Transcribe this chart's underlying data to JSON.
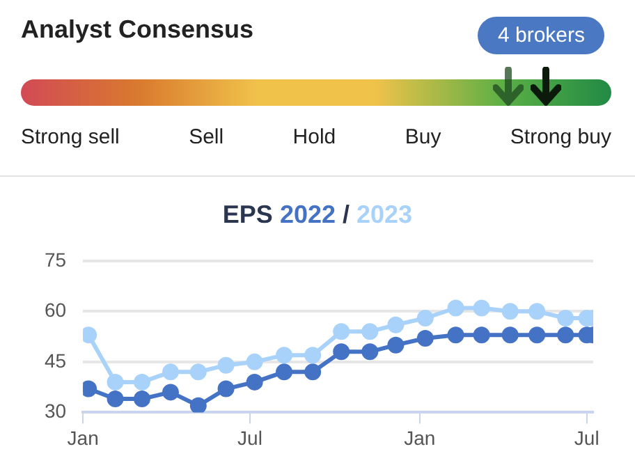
{
  "chart_data": [
    {
      "type": "other",
      "title": "Analyst Consensus",
      "annotations": [
        "4 brokers"
      ],
      "categories": [
        "Strong sell",
        "Sell",
        "Hold",
        "Buy",
        "Strong buy"
      ]
    },
    {
      "type": "line",
      "title": "EPS",
      "annotations": [
        "/"
      ],
      "legend": "top",
      "grid": "y",
      "marker": "circle",
      "line_style": "solid",
      "x": [
        "2022-01-07",
        "2022-02-05",
        "2022-03-06",
        "2022-04-06",
        "2022-05-06",
        "2022-06-05",
        "2022-07-06",
        "2022-08-07",
        "2022-09-07",
        "2022-10-08",
        "2022-11-08",
        "2022-12-06",
        "2023-01-07",
        "2023-02-09",
        "2023-03-09",
        "2023-04-09",
        "2023-05-08",
        "2023-06-08",
        "2023-07-01",
        "2023-07-08"
      ],
      "series": [
        {
          "name": "2022",
          "color": "#4472c4",
          "values": [
            37,
            34,
            34,
            36,
            32,
            37,
            39,
            42,
            42,
            48,
            48,
            50,
            52,
            53,
            53,
            53,
            53,
            53,
            53,
            53
          ]
        },
        {
          "name": "2023",
          "color": "#a9d2fb",
          "values": [
            53,
            39,
            39,
            42,
            42,
            44,
            45,
            47,
            47,
            54,
            54,
            56,
            58,
            61,
            61,
            60,
            60,
            58,
            58,
            58
          ]
        }
      ],
      "xlim": [
        "2022-01-01",
        "2023-07-08"
      ],
      "xticks": [
        {
          "value": "2022-01-01",
          "label": "Jan"
        },
        {
          "value": "2022-07-01",
          "label": "Jul"
        },
        {
          "value": "2023-01-01",
          "label": "Jan"
        },
        {
          "value": "2023-07-01",
          "label": "Jul"
        }
      ],
      "ylim": [
        30,
        75
      ],
      "yticks": [
        30,
        45,
        60,
        75
      ]
    }
  ]
}
